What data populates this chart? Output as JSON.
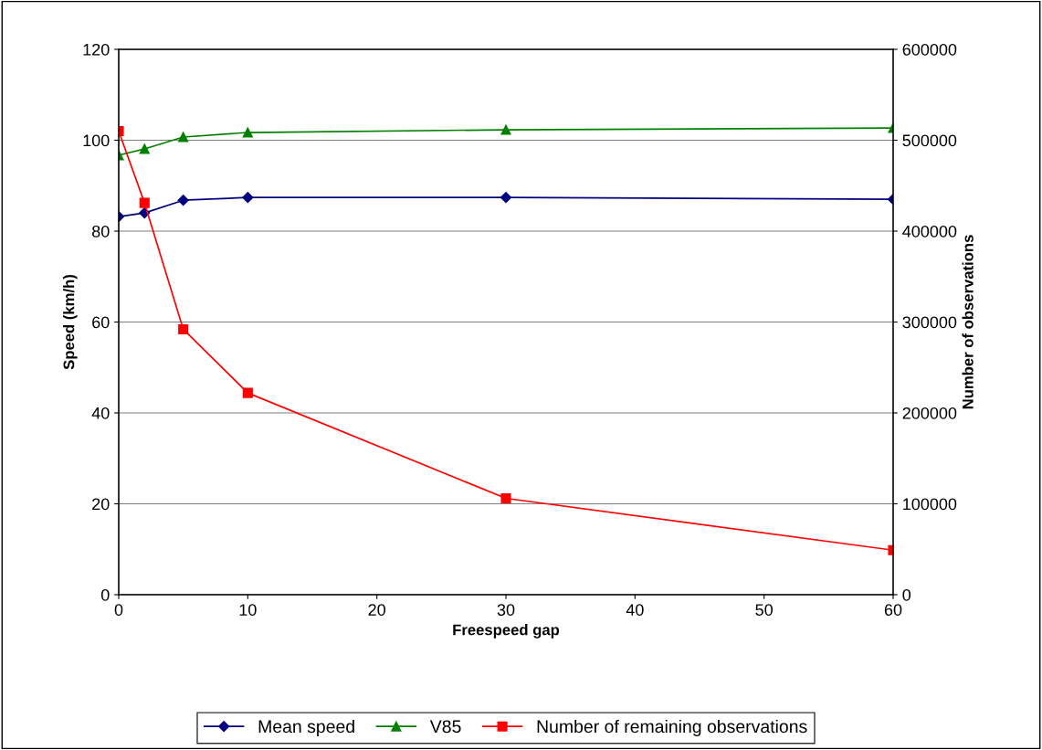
{
  "chart_data": {
    "type": "line",
    "xlabel": "Freespeed gap",
    "ylabel": "Speed (km/h)",
    "y2label": "Number of observations",
    "xlim": [
      0,
      60
    ],
    "xticks": [
      0,
      10,
      20,
      30,
      40,
      50,
      60
    ],
    "ylim": [
      0,
      120
    ],
    "yticks": [
      0,
      20,
      40,
      60,
      80,
      100,
      120
    ],
    "y2lim": [
      0,
      600000
    ],
    "y2ticks": [
      0,
      100000,
      200000,
      300000,
      400000,
      500000,
      600000
    ],
    "grid": "y",
    "legend": "bottom",
    "line_style": "solid",
    "series": [
      {
        "name": "Mean speed",
        "color": "#000080",
        "marker": "diamond",
        "x": [
          0,
          2,
          5,
          10,
          30,
          60
        ],
        "values": [
          83.2,
          84.0,
          86.8,
          87.4,
          87.4,
          87.0
        ]
      },
      {
        "name": "V85",
        "color": "#008000",
        "marker": "triangle",
        "x": [
          0,
          2,
          5,
          10,
          30,
          60
        ],
        "values": [
          96.7,
          98.1,
          100.7,
          101.7,
          102.3,
          102.7
        ]
      },
      {
        "name": "Number of remaining observations",
        "color": "#ff0000",
        "marker": "square",
        "axis": "y2",
        "x": [
          0,
          2,
          5,
          10,
          30,
          60
        ],
        "values": [
          510000,
          431000,
          292000,
          222000,
          106000,
          49000
        ]
      }
    ]
  }
}
